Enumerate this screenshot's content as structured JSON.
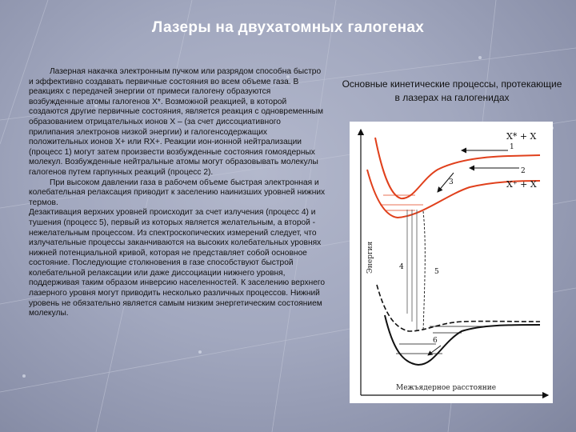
{
  "slide": {
    "title": "Лазеры на двухатомных галогенах",
    "paragraphs": [
      "Лазерная накачка электронным пучком или разрядом способна быстро и эффективно создавать первичные состояния во всем объеме газа. В реакциях с передачей энергии от примеси галогену образуются возбужденные атомы галогенов Х*. Возможной реакцией, в которой создаются другие первичные состояния, является реакция с одновременным образованием отрицательных ионов Х – (за счет диссоциативного прилипания электронов низкой энергии) и галогенсодержащих положительных ионов Х+ или RX+. Реакции ион-ионной нейтрализации (процесс 1) могут затем произвести возбужденные состояния гомоядерных молекул. Возбужденные нейтральные атомы могут образовывать молекулы галогенов путем гарпунных реакций (процесс 2).",
      "При высоком давлении газа в рабочем объеме быстрая электронная и колебательная релаксация приводит к заселению наинизших уровней нижних термов.",
      " Дезактивация верхних уровней происходит за счет излучения (процесс 4) и тушения (процесс 5), первый из которых является желательным, а второй - нежелательным процессом. Из спектроскопических измерений следует, что излучательные процессы заканчиваются на высоких колебательных уровнях нижней потенциальной кривой, которая не представляет собой основное состояние. Последующие столкновения в газе способствуют быстрой колебательной релаксации или даже диссоциации нижнего уровня, поддерживая таким образом инверсию населенностей. К заселению верхнего лазерного уровня могут приводить несколько различных процессов. Нижний уровень не обязательно является самым низким энергетическим состоянием молекулы."
    ],
    "caption": "Основные кинетические процессы, протекающие в лазерах на галогенидах"
  },
  "diagram": {
    "y_axis_label": "Энергия",
    "x_axis_label": "Межъядерное расстояние",
    "asymptote_upper": "X* + X",
    "asymptote_lower": "X⁺ + X",
    "process_labels": [
      "1",
      "2",
      "3",
      "4",
      "5",
      "6"
    ],
    "colors": {
      "upper_curves": "#e0401c",
      "lower_curves": "#111111",
      "axis": "#111111"
    }
  }
}
